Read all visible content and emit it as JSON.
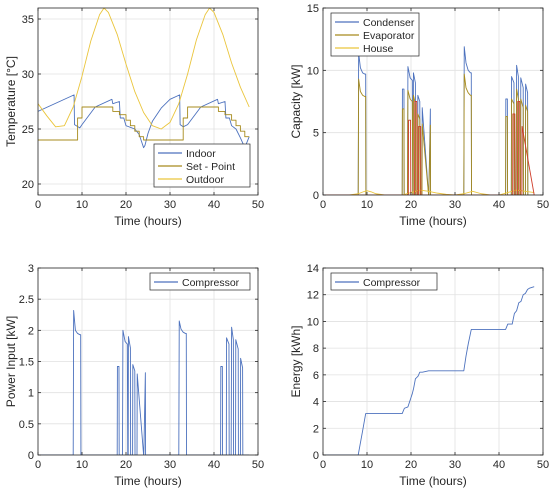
{
  "figure": {
    "colors": {
      "blue": "#4d72be",
      "olive": "#a78b1d",
      "yellow": "#eac53c",
      "red": "#cf3c29",
      "grid": "#e1e1e1",
      "axis": "#262626"
    }
  },
  "chart_data": [
    {
      "type": "line",
      "xlabel": "Time (hours)",
      "ylabel": "Temperature [°C]",
      "xlim": [
        0,
        50
      ],
      "ylim": [
        19,
        36
      ],
      "xticks": [
        0,
        10,
        20,
        30,
        40,
        50
      ],
      "yticks": [
        20,
        25,
        30,
        35
      ],
      "grid": true,
      "legend": "lower-right",
      "series": [
        {
          "name": "Indoor",
          "color": "#4d72be",
          "x": [
            0,
            8.2,
            8.3,
            9.5,
            10,
            13,
            16.8,
            17,
            18.5,
            18.7,
            19.5,
            20,
            22,
            23,
            23.5,
            24,
            24.3,
            25,
            26,
            28,
            30,
            32.2,
            32.3,
            33,
            34,
            37,
            40.8,
            41,
            42.5,
            42.7,
            43.5,
            44,
            45,
            46,
            47,
            48
          ],
          "y": [
            26.6,
            28.1,
            25.4,
            25.1,
            25.4,
            27.0,
            27.7,
            27.3,
            27.5,
            26.0,
            26.0,
            25.3,
            25.0,
            24.5,
            23.9,
            23.3,
            23.5,
            24.6,
            25.7,
            26.9,
            27.7,
            28.1,
            25.4,
            25.2,
            25.4,
            27.0,
            27.7,
            27.3,
            27.5,
            26.0,
            26.0,
            25.3,
            25.0,
            24.2,
            23.3,
            24.3
          ]
        },
        {
          "name": "Set - Point",
          "color": "#a78b1d",
          "x": [
            0,
            9,
            9,
            10,
            10,
            17,
            17,
            18.5,
            18.5,
            20,
            20,
            21,
            21,
            22,
            22,
            23,
            23,
            24,
            24,
            33,
            33,
            34,
            34,
            41,
            41,
            42.5,
            42.5,
            44,
            44,
            45,
            45,
            46,
            46,
            47,
            47,
            48
          ],
          "y": [
            24,
            24,
            26,
            26,
            27,
            27,
            26.6,
            26.6,
            26.3,
            26.3,
            25.8,
            25.8,
            25.3,
            25.3,
            24.8,
            24.8,
            24.3,
            24.3,
            24,
            24,
            26,
            26,
            27,
            27,
            26.6,
            26.6,
            26.3,
            26.3,
            25.8,
            25.8,
            25.3,
            25.3,
            24.8,
            24.8,
            24.3,
            24.3
          ]
        },
        {
          "name": "Outdoor",
          "color": "#eac53c",
          "x": [
            0,
            2,
            4,
            6,
            8,
            10,
            12,
            14,
            15,
            16,
            18,
            20,
            22,
            24,
            26,
            28,
            30,
            32,
            34,
            36,
            38,
            39,
            40,
            42,
            44,
            46,
            48
          ],
          "y": [
            27.3,
            26.2,
            25.2,
            25.3,
            27.0,
            29.8,
            33.0,
            35.4,
            36.0,
            35.6,
            33.6,
            30.9,
            28.4,
            26.5,
            25.3,
            25.0,
            25.6,
            27.3,
            30.0,
            33.1,
            35.4,
            36.0,
            35.6,
            33.6,
            31.0,
            28.8,
            27.0
          ]
        }
      ]
    },
    {
      "type": "line",
      "xlabel": "Time (hours)",
      "ylabel": "Capacity [kW]",
      "xlim": [
        0,
        50
      ],
      "ylim": [
        0,
        15
      ],
      "xticks": [
        0,
        10,
        20,
        30,
        40,
        50
      ],
      "yticks": [
        0,
        5,
        10,
        15
      ],
      "grid": true,
      "legend": "top-left",
      "series": [
        {
          "name": "Condenser",
          "color": "#4d72be",
          "x": [
            0,
            8.0,
            8.1,
            8.5,
            9.0,
            9.5,
            9.7,
            9.75,
            18.0,
            18.05,
            18.4,
            18.45,
            19.2,
            19.3,
            19.8,
            20.3,
            20.4,
            20.5,
            20.55,
            21.0,
            21.05,
            21.5,
            21.55,
            22.0,
            22.05,
            22.5,
            22.55,
            24.0,
            24.05,
            24.4,
            24.45,
            32.0,
            32.1,
            32.5,
            33.0,
            33.5,
            33.7,
            33.75,
            41.5,
            41.55,
            41.9,
            41.95,
            42.8,
            42.85,
            43.4,
            43.45,
            43.9,
            44.0,
            44.4,
            44.45,
            44.9,
            44.95,
            45.5,
            45.55,
            46.0,
            46.05,
            46.5,
            46.55,
            48.0
          ],
          "y": [
            0,
            0,
            11.4,
            10.2,
            9.8,
            9.7,
            9.7,
            0,
            0,
            8.5,
            8.5,
            0,
            0,
            10.3,
            9.4,
            9.2,
            0,
            0,
            9.8,
            9.0,
            0,
            0,
            8.0,
            7.5,
            0,
            0,
            7.0,
            0,
            0,
            6.9,
            0,
            0,
            11.9,
            10.6,
            10.0,
            9.8,
            9.8,
            0,
            0,
            7.7,
            7.7,
            0,
            0,
            9.5,
            9.0,
            0,
            0,
            10.4,
            9.5,
            0,
            0,
            9.4,
            8.6,
            0,
            0,
            8.9,
            8.2,
            0,
            0
          ]
        },
        {
          "name": "Evaporator",
          "color": "#a78b1d",
          "x": [
            0,
            8.0,
            8.1,
            8.5,
            9.0,
            9.5,
            9.7,
            9.75,
            18.0,
            18.05,
            18.4,
            18.45,
            19.2,
            19.3,
            19.8,
            20.3,
            20.4,
            20.5,
            20.55,
            21.0,
            21.05,
            21.5,
            21.55,
            22.0,
            22.05,
            22.5,
            22.55,
            24.0,
            24.05,
            24.4,
            24.45,
            32.0,
            32.1,
            32.5,
            33.0,
            33.5,
            33.7,
            33.75,
            41.5,
            41.55,
            41.9,
            41.95,
            42.8,
            42.85,
            43.4,
            43.45,
            43.9,
            44.0,
            44.4,
            44.45,
            44.9,
            44.95,
            45.5,
            45.55,
            46.0,
            46.05,
            46.5,
            46.55,
            48.0
          ],
          "y": [
            0,
            0,
            9.3,
            8.3,
            8.0,
            7.9,
            7.9,
            0,
            0,
            6.9,
            6.9,
            0,
            0,
            8.4,
            7.7,
            7.5,
            0,
            0,
            8.0,
            7.3,
            0,
            0,
            6.5,
            6.1,
            0,
            0,
            5.7,
            0,
            0,
            5.6,
            0,
            0,
            9.7,
            8.6,
            8.2,
            8.0,
            8.0,
            0,
            0,
            6.3,
            6.3,
            0,
            0,
            7.7,
            7.3,
            0,
            0,
            8.5,
            7.7,
            0,
            0,
            7.7,
            7.0,
            0,
            0,
            7.2,
            6.7,
            0,
            0
          ]
        },
        {
          "name": "House",
          "color": "#eac53c",
          "x": [
            0,
            2,
            4,
            6,
            8,
            9.5,
            10,
            11,
            12,
            14,
            16,
            18,
            20,
            22,
            24,
            26,
            28,
            30,
            32,
            34,
            36,
            38,
            40,
            42,
            44,
            46,
            48
          ],
          "y": [
            0,
            0,
            0,
            0,
            0.1,
            0.3,
            0.35,
            0.25,
            0.1,
            0,
            0,
            0,
            0.2,
            0.4,
            0.3,
            0.15,
            0.05,
            0,
            0.1,
            0.3,
            0.1,
            0,
            0,
            0.2,
            0.4,
            0.3,
            0.2
          ]
        },
        {
          "name": "",
          "color": "#cf3c29",
          "x": [
            0,
            19.4,
            19.45,
            19.9,
            19.95,
            20.8,
            20.85,
            21.3,
            21.35,
            21.7,
            21.75,
            22.2,
            22.25,
            43.1,
            43.15,
            43.6,
            43.65,
            44.2,
            44.25,
            44.7,
            44.75,
            45.2,
            45.25,
            48.0
          ],
          "y": [
            0,
            0,
            6.0,
            6.0,
            0,
            0,
            7.5,
            7.5,
            0,
            0,
            5.5,
            5.5,
            0,
            0,
            6.5,
            6.5,
            0,
            0,
            7.5,
            7.5,
            0,
            0,
            5.5,
            0
          ]
        }
      ]
    },
    {
      "type": "line",
      "xlabel": "Time (hours)",
      "ylabel": "Power Input [kW]",
      "xlim": [
        0,
        50
      ],
      "ylim": [
        0,
        3
      ],
      "xticks": [
        0,
        10,
        20,
        30,
        40,
        50
      ],
      "yticks": [
        0,
        0.5,
        1,
        1.5,
        2,
        2.5,
        3
      ],
      "grid": true,
      "legend": "top-right",
      "series": [
        {
          "name": "Compressor",
          "color": "#4d72be",
          "x": [
            0,
            8.0,
            8.1,
            8.5,
            9.0,
            9.5,
            9.7,
            9.75,
            18.0,
            18.05,
            18.4,
            18.45,
            19.2,
            19.3,
            19.8,
            20.3,
            20.4,
            20.5,
            20.55,
            21.0,
            21.05,
            21.5,
            21.55,
            22.0,
            22.05,
            22.5,
            22.55,
            24.0,
            24.05,
            24.4,
            24.45,
            32.0,
            32.1,
            32.5,
            33.0,
            33.5,
            33.7,
            33.75,
            41.5,
            41.55,
            41.9,
            41.95,
            42.8,
            42.85,
            43.4,
            43.45,
            43.9,
            44.0,
            44.4,
            44.45,
            44.9,
            44.95,
            45.5,
            45.55,
            46.0,
            46.05,
            46.5,
            46.55,
            48.0
          ],
          "y": [
            0,
            0,
            2.32,
            2.0,
            1.95,
            1.93,
            1.93,
            0,
            0,
            1.42,
            1.42,
            0,
            0,
            2.0,
            1.82,
            1.78,
            0,
            0,
            1.9,
            1.72,
            0,
            0,
            1.45,
            1.35,
            0,
            0,
            1.3,
            0,
            0,
            1.32,
            0,
            0,
            2.15,
            2.02,
            1.97,
            1.95,
            1.95,
            0,
            0,
            1.42,
            1.42,
            0,
            0,
            1.88,
            1.78,
            0,
            0,
            2.05,
            1.85,
            0,
            0,
            1.85,
            1.7,
            0,
            0,
            1.55,
            1.4,
            0,
            0
          ]
        }
      ]
    },
    {
      "type": "line",
      "xlabel": "Time (hours)",
      "ylabel": "Energy [kWh]",
      "xlim": [
        0,
        50
      ],
      "ylim": [
        0,
        14
      ],
      "xticks": [
        0,
        10,
        20,
        30,
        40,
        50
      ],
      "yticks": [
        0,
        2,
        4,
        6,
        8,
        10,
        12,
        14
      ],
      "grid": true,
      "legend": "top-left",
      "series": [
        {
          "name": "Compressor",
          "color": "#4d72be",
          "x": [
            0,
            8,
            9,
            9.7,
            18,
            18.5,
            19.3,
            20.3,
            20.6,
            21.0,
            21.6,
            22.0,
            22.6,
            24.0,
            24.5,
            32,
            32.5,
            33,
            33.7,
            41.5,
            42,
            43,
            43.5,
            44,
            44.5,
            45,
            45.5,
            46,
            46.5,
            47,
            48
          ],
          "y": [
            0,
            0,
            1.8,
            3.1,
            3.1,
            3.5,
            3.6,
            4.6,
            5.0,
            5.7,
            5.9,
            6.2,
            6.2,
            6.3,
            6.3,
            6.3,
            7.4,
            8.3,
            9.4,
            9.4,
            9.8,
            9.8,
            10.6,
            10.8,
            11.4,
            11.5,
            12.0,
            12.1,
            12.4,
            12.5,
            12.6
          ]
        }
      ]
    }
  ]
}
